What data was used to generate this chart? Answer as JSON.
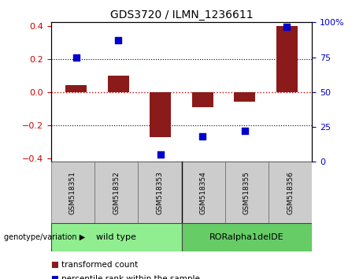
{
  "title": "GDS3720 / ILMN_1236611",
  "categories": [
    "GSM518351",
    "GSM518352",
    "GSM518353",
    "GSM518354",
    "GSM518355",
    "GSM518356"
  ],
  "red_bars": [
    0.04,
    0.1,
    -0.27,
    -0.09,
    -0.06,
    0.4
  ],
  "blue_dots_pct": [
    75,
    87,
    5,
    18,
    22,
    97
  ],
  "ylim": [
    -0.42,
    0.42
  ],
  "y_ticks_left": [
    -0.4,
    -0.2,
    0.0,
    0.2,
    0.4
  ],
  "y_ticks_right": [
    0,
    25,
    50,
    75,
    100
  ],
  "y_ticks_right_labels": [
    "0",
    "25",
    "50",
    "75",
    "100%"
  ],
  "red_bar_color": "#8B1A1A",
  "blue_dot_color": "#0000CC",
  "zero_line_color": "#CC0000",
  "grid_color": "#000000",
  "group1_label": "wild type",
  "group2_label": "RORalpha1delDE",
  "group1_color": "#90EE90",
  "group2_color": "#66CC66",
  "sample_box_color": "#CCCCCC",
  "genotype_label": "genotype/variation",
  "legend_red_label": "transformed count",
  "legend_blue_label": "percentile rank within the sample",
  "bar_width": 0.5,
  "dot_size": 35,
  "group_split": 2.5,
  "n_group1": 3,
  "n_group2": 3
}
